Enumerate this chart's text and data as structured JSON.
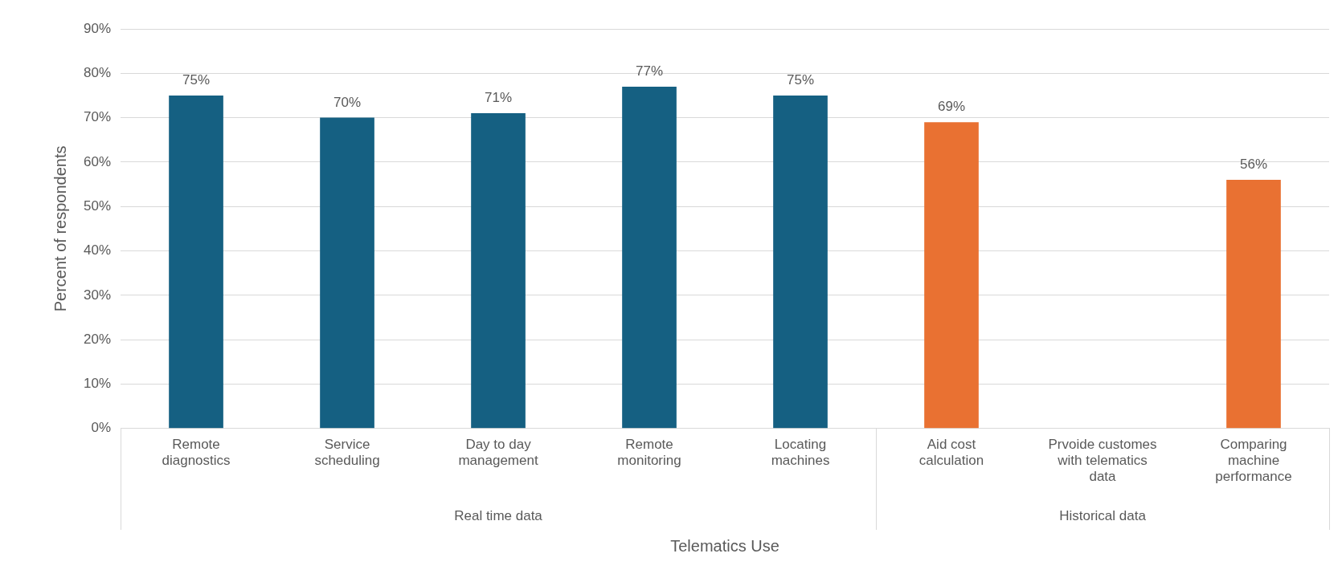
{
  "chart_data": {
    "type": "bar",
    "xlabel": "Telematics Use",
    "ylabel": "Percent of respondents",
    "categories": [
      "Remote diagnostics",
      "Service scheduling",
      "Day to day management",
      "Remote monitoring",
      "Locating machines",
      "Aid cost calculation",
      "Prvoide customes with telematics data",
      "Comparing machine performance"
    ],
    "values": [
      75,
      70,
      71,
      77,
      75,
      69,
      null,
      56
    ],
    "colors": [
      "#156082",
      "#156082",
      "#156082",
      "#156082",
      "#156082",
      "#e97132",
      "#e97132",
      "#e97132"
    ],
    "value_labels": [
      "75%",
      "70%",
      "71%",
      "77%",
      "75%",
      "69%",
      null,
      "56%"
    ],
    "ylim": [
      0,
      90
    ],
    "yticks": [
      {
        "value": 0,
        "label": "0%"
      },
      {
        "value": 10,
        "label": "10%"
      },
      {
        "value": 20,
        "label": "20%"
      },
      {
        "value": 30,
        "label": "30%"
      },
      {
        "value": 40,
        "label": "40%"
      },
      {
        "value": 50,
        "label": "50%"
      },
      {
        "value": 60,
        "label": "60%"
      },
      {
        "value": 70,
        "label": "70%"
      },
      {
        "value": 80,
        "label": "80%"
      },
      {
        "value": 90,
        "label": "90%"
      }
    ],
    "grid": "y",
    "annotations": [
      "Real time data",
      "Historical data"
    ]
  }
}
